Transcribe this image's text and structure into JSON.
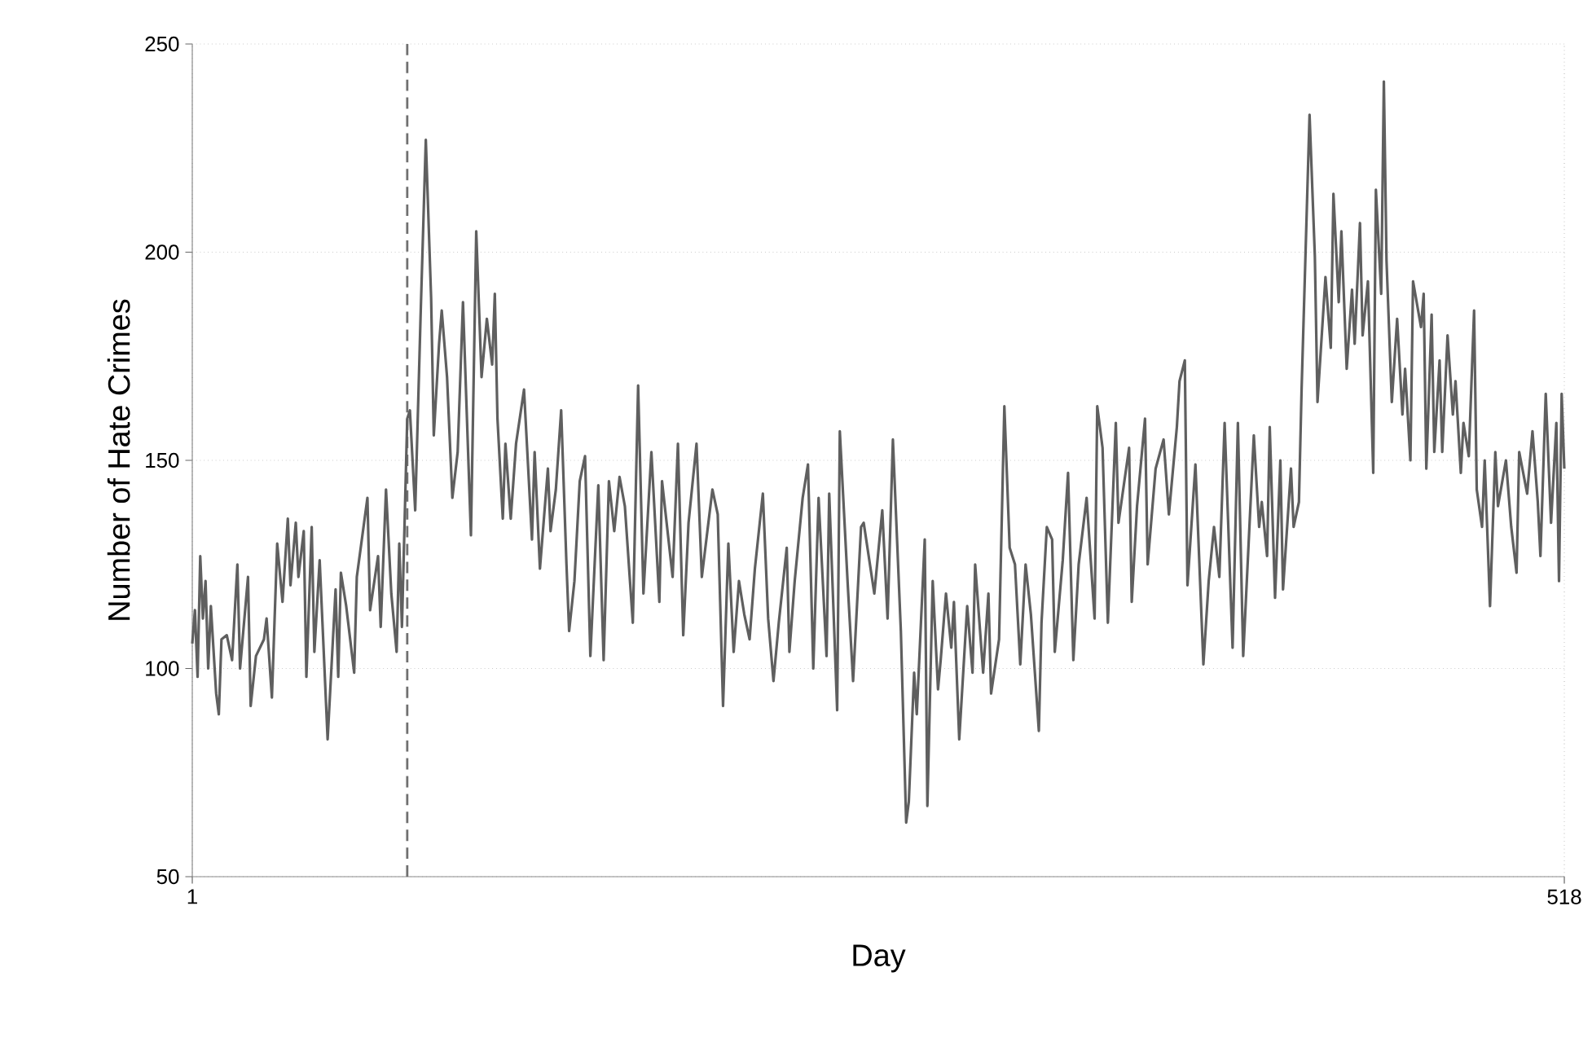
{
  "chart_data": {
    "type": "line",
    "xlabel": "Day",
    "ylabel": "Number of Hate Crimes",
    "xlim": [
      1,
      518
    ],
    "ylim": [
      50,
      250
    ],
    "xticks": [
      1,
      518
    ],
    "yticks": [
      50,
      100,
      150,
      200,
      250
    ],
    "grid": true,
    "ref_lines": [
      {
        "axis": "x",
        "value": 82,
        "color": "#707070",
        "line_style": "dashed"
      }
    ],
    "series": [
      {
        "color": "#5f5f5f",
        "x": [
          1,
          2,
          3,
          4,
          5,
          6,
          7,
          8,
          10,
          11,
          12,
          14,
          16,
          18,
          19,
          22,
          23,
          25,
          28,
          29,
          31,
          33,
          35,
          37,
          38,
          40,
          41,
          43,
          44,
          46,
          47,
          49,
          52,
          55,
          56,
          57,
          59,
          62,
          63,
          67,
          68,
          71,
          72,
          74,
          76,
          78,
          79,
          80,
          82,
          83,
          85,
          87,
          89,
          91,
          92,
          94,
          95,
          97,
          99,
          101,
          103,
          106,
          108,
          110,
          112,
          114,
          115,
          116,
          118,
          119,
          121,
          123,
          126,
          129,
          130,
          132,
          135,
          136,
          138,
          140,
          142,
          143,
          145,
          147,
          149,
          151,
          154,
          156,
          158,
          160,
          162,
          164,
          167,
          169,
          171,
          174,
          177,
          178,
          182,
          184,
          186,
          188,
          191,
          193,
          197,
          199,
          201,
          203,
          205,
          207,
          209,
          211,
          213,
          216,
          218,
          220,
          222,
          225,
          226,
          228,
          231,
          233,
          235,
          237,
          240,
          241,
          244,
          245,
          248,
          250,
          253,
          254,
          258,
          261,
          263,
          265,
          268,
          270,
          271,
          273,
          274,
          277,
          278,
          280,
          282,
          283,
          285,
          287,
          288,
          290,
          293,
          295,
          296,
          299,
          301,
          302,
          305,
          307,
          309,
          311,
          313,
          315,
          317,
          320,
          321,
          323,
          325,
          326,
          329,
          331,
          333,
          335,
          338,
          341,
          342,
          344,
          346,
          349,
          350,
          354,
          355,
          357,
          360,
          361,
          364,
          367,
          369,
          372,
          373,
          375,
          376,
          379,
          382,
          384,
          386,
          388,
          390,
          393,
          395,
          397,
          401,
          403,
          404,
          406,
          407,
          409,
          411,
          412,
          415,
          416,
          418,
          419,
          422,
          424,
          425,
          428,
          430,
          431,
          433,
          434,
          436,
          438,
          439,
          441,
          442,
          444,
          446,
          447,
          449,
          450,
          451,
          453,
          455,
          457,
          458,
          460,
          461,
          464,
          465,
          466,
          468,
          469,
          471,
          472,
          474,
          476,
          477,
          479,
          480,
          482,
          484,
          485,
          487,
          488,
          490,
          492,
          493,
          496,
          498,
          500,
          501,
          504,
          506,
          508,
          509,
          511,
          513,
          515,
          516,
          517,
          518
        ],
        "values": [
          106,
          114,
          98,
          127,
          112,
          121,
          100,
          115,
          94,
          89,
          107,
          108,
          102,
          125,
          100,
          122,
          91,
          103,
          107,
          112,
          93,
          130,
          116,
          136,
          120,
          135,
          122,
          133,
          98,
          134,
          104,
          126,
          83,
          119,
          98,
          123,
          115,
          99,
          122,
          141,
          114,
          127,
          110,
          143,
          118,
          104,
          130,
          110,
          160,
          162,
          138,
          184,
          227,
          189,
          156,
          178,
          186,
          170,
          141,
          152,
          188,
          132,
          205,
          170,
          184,
          173,
          190,
          160,
          136,
          154,
          136,
          154,
          167,
          131,
          152,
          124,
          148,
          133,
          143,
          162,
          125,
          109,
          121,
          145,
          151,
          103,
          144,
          102,
          145,
          133,
          146,
          139,
          111,
          168,
          118,
          152,
          116,
          145,
          122,
          154,
          108,
          135,
          154,
          122,
          143,
          137,
          91,
          130,
          104,
          121,
          113,
          107,
          124,
          142,
          112,
          97,
          111,
          129,
          104,
          121,
          141,
          149,
          100,
          141,
          103,
          142,
          90,
          157,
          120,
          97,
          134,
          135,
          118,
          138,
          112,
          155,
          109,
          63,
          68,
          99,
          89,
          131,
          67,
          121,
          95,
          102,
          118,
          105,
          116,
          83,
          115,
          99,
          125,
          99,
          118,
          94,
          107,
          163,
          129,
          125,
          101,
          125,
          113,
          85,
          111,
          134,
          131,
          104,
          126,
          147,
          102,
          125,
          141,
          112,
          163,
          153,
          111,
          159,
          135,
          153,
          116,
          139,
          160,
          125,
          148,
          155,
          137,
          158,
          169,
          174,
          120,
          149,
          101,
          121,
          134,
          122,
          159,
          105,
          159,
          103,
          156,
          134,
          140,
          127,
          158,
          117,
          150,
          119,
          148,
          134,
          140,
          167,
          233,
          199,
          164,
          194,
          177,
          214,
          188,
          205,
          172,
          191,
          178,
          207,
          180,
          193,
          147,
          215,
          190,
          241,
          198,
          164,
          184,
          161,
          172,
          150,
          193,
          182,
          190,
          148,
          185,
          152,
          174,
          152,
          180,
          161,
          169,
          147,
          159,
          151,
          186,
          143,
          134,
          150,
          115,
          152,
          139,
          150,
          134,
          123,
          152,
          142,
          157,
          140,
          127,
          166,
          135,
          159,
          121,
          166,
          148
        ]
      }
    ]
  }
}
